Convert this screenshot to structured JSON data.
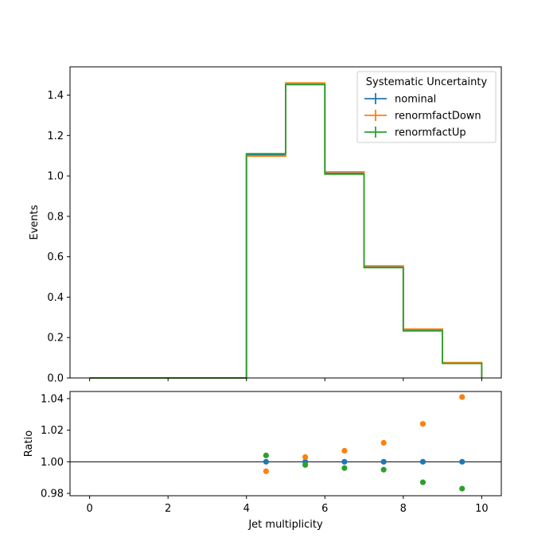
{
  "chart_data": [
    {
      "type": "line",
      "step": true,
      "ylabel": "Events",
      "xlim": [
        -0.5,
        10.5
      ],
      "ylim": [
        0,
        1.54
      ],
      "yticks": [
        0.0,
        0.2,
        0.4,
        0.6,
        0.8,
        1.0,
        1.2,
        1.4
      ],
      "ytick_labels": [
        "0.0",
        "0.2",
        "0.4",
        "0.6",
        "0.8",
        "1.0",
        "1.2",
        "1.4"
      ],
      "bin_edges": [
        0,
        1,
        2,
        3,
        4,
        5,
        6,
        7,
        8,
        9,
        10
      ],
      "legend": {
        "title": "Systematic Uncertainty",
        "placement": "top-right"
      },
      "series": [
        {
          "name": "nominal",
          "color": "#1f77b4",
          "values": [
            0,
            0,
            0,
            0,
            1.105,
            1.455,
            1.013,
            0.549,
            0.236,
            0.073
          ]
        },
        {
          "name": "renormfactDown",
          "color": "#ff7f0e",
          "values": [
            0,
            0,
            0,
            0,
            1.098,
            1.46,
            1.02,
            0.555,
            0.242,
            0.076
          ]
        },
        {
          "name": "renormfactUp",
          "color": "#2ca02c",
          "values": [
            0,
            0,
            0,
            0,
            1.11,
            1.452,
            1.009,
            0.546,
            0.233,
            0.072
          ]
        }
      ]
    },
    {
      "type": "scatter",
      "xlabel": "Jet multiplicity",
      "ylabel": "Ratio",
      "xlim": [
        -0.5,
        10.5
      ],
      "ylim": [
        0.9785,
        1.0445
      ],
      "xticks": [
        0,
        2,
        4,
        6,
        8,
        10
      ],
      "xtick_labels": [
        "0",
        "2",
        "4",
        "6",
        "8",
        "10"
      ],
      "yticks": [
        0.98,
        1.0,
        1.02,
        1.04
      ],
      "ytick_labels": [
        "0.98",
        "1.00",
        "1.02",
        "1.04"
      ],
      "reference_line": 1.0,
      "series": [
        {
          "name": "nominal",
          "color": "#1f77b4",
          "x": [
            4.5,
            5.5,
            6.5,
            7.5,
            8.5,
            9.5
          ],
          "y": [
            1.0,
            1.0,
            1.0,
            1.0,
            1.0,
            1.0
          ]
        },
        {
          "name": "renormfactDown",
          "color": "#ff7f0e",
          "x": [
            4.5,
            5.5,
            6.5,
            7.5,
            8.5,
            9.5
          ],
          "y": [
            0.994,
            1.003,
            1.007,
            1.012,
            1.024,
            1.041
          ]
        },
        {
          "name": "renormfactUp",
          "color": "#2ca02c",
          "x": [
            4.5,
            5.5,
            6.5,
            7.5,
            8.5,
            9.5
          ],
          "y": [
            1.004,
            0.998,
            0.996,
            0.995,
            0.987,
            0.983
          ]
        }
      ]
    }
  ]
}
